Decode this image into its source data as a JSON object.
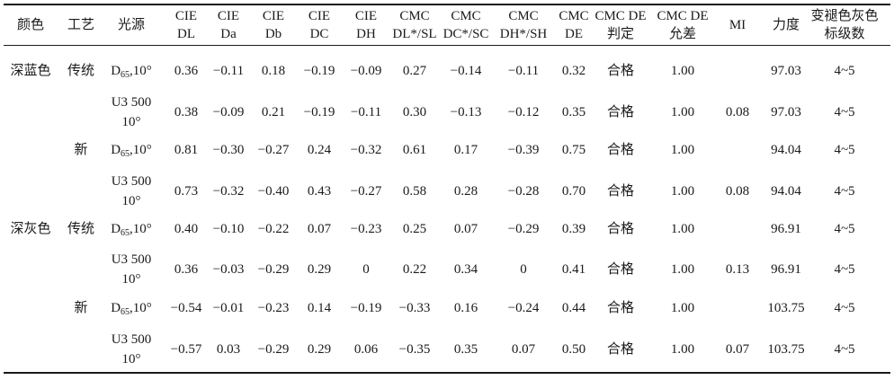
{
  "table": {
    "headers": [
      [
        "颜色"
      ],
      [
        "工艺"
      ],
      [
        "光源"
      ],
      [
        "CIE",
        "DL"
      ],
      [
        "CIE",
        "Da"
      ],
      [
        "CIE",
        "Db"
      ],
      [
        "CIE",
        "DC"
      ],
      [
        "CIE",
        "DH"
      ],
      [
        "CMC",
        "DL*/SL"
      ],
      [
        "CMC",
        "DC*/SC"
      ],
      [
        "CMC",
        "DH*/SH"
      ],
      [
        "CMC",
        "DE"
      ],
      [
        "CMC DE",
        "判定"
      ],
      [
        "CMC DE",
        "允差"
      ],
      [
        "MI"
      ],
      [
        "力度"
      ],
      [
        "变褪色灰色",
        "标级数"
      ]
    ],
    "rows": [
      {
        "color": "深蓝色",
        "process": "传统",
        "light": "D65,10°",
        "values": [
          "0.36",
          "−0.11",
          "0.18",
          "−0.19",
          "−0.09",
          "0.27",
          "−0.14",
          "−0.11",
          "0.32",
          "合格",
          "1.00",
          "",
          "97.03",
          "4~5"
        ]
      },
      {
        "color": "",
        "process": "",
        "light": "U3 500\n10°",
        "values": [
          "0.38",
          "−0.09",
          "0.21",
          "−0.19",
          "−0.11",
          "0.30",
          "−0.13",
          "−0.12",
          "0.35",
          "合格",
          "1.00",
          "0.08",
          "97.03",
          "4~5"
        ]
      },
      {
        "color": "",
        "process": "新",
        "light": "D65,10°",
        "values": [
          "0.81",
          "−0.30",
          "−0.27",
          "0.24",
          "−0.32",
          "0.61",
          "0.17",
          "−0.39",
          "0.75",
          "合格",
          "1.00",
          "",
          "94.04",
          "4~5"
        ]
      },
      {
        "color": "",
        "process": "",
        "light": "U3 500\n10°",
        "values": [
          "0.73",
          "−0.32",
          "−0.40",
          "0.43",
          "−0.27",
          "0.58",
          "0.28",
          "−0.28",
          "0.70",
          "合格",
          "1.00",
          "0.08",
          "94.04",
          "4~5"
        ]
      },
      {
        "color": "深灰色",
        "process": "传统",
        "light": "D65,10°",
        "values": [
          "0.40",
          "−0.10",
          "−0.22",
          "0.07",
          "−0.23",
          "0.25",
          "0.07",
          "−0.29",
          "0.39",
          "合格",
          "1.00",
          "",
          "96.91",
          "4~5"
        ]
      },
      {
        "color": "",
        "process": "",
        "light": "U3 500\n10°",
        "values": [
          "0.36",
          "−0.03",
          "−0.29",
          "0.29",
          "0",
          "0.22",
          "0.34",
          "0",
          "0.41",
          "合格",
          "1.00",
          "0.13",
          "96.91",
          "4~5"
        ]
      },
      {
        "color": "",
        "process": "新",
        "light": "D65,10°",
        "values": [
          "−0.54",
          "−0.01",
          "−0.23",
          "0.14",
          "−0.19",
          "−0.33",
          "0.16",
          "−0.24",
          "0.44",
          "合格",
          "1.00",
          "",
          "103.75",
          "4~5"
        ]
      },
      {
        "color": "",
        "process": "",
        "light": "U3 500\n10°",
        "values": [
          "−0.57",
          "0.03",
          "−0.29",
          "0.29",
          "0.06",
          "−0.35",
          "0.35",
          "0.07",
          "0.50",
          "合格",
          "1.00",
          "0.07",
          "103.75",
          "4~5"
        ]
      }
    ]
  }
}
